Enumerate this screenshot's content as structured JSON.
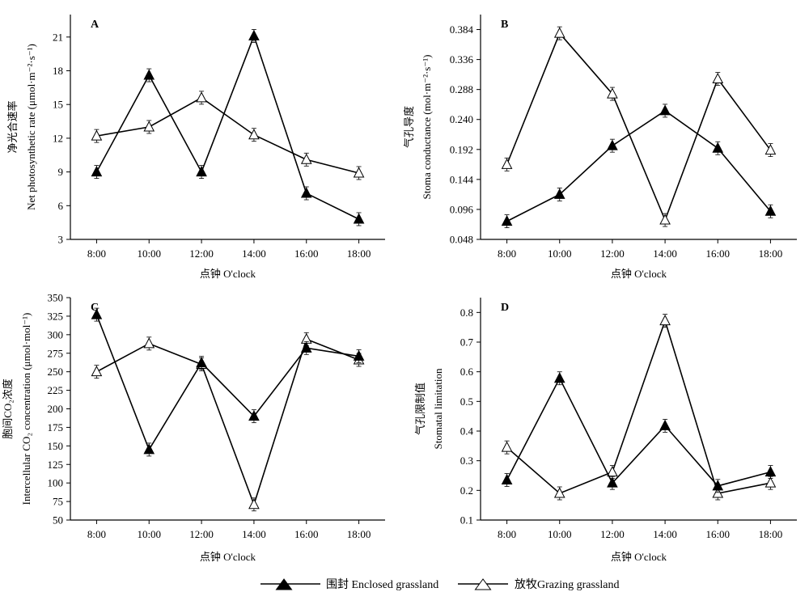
{
  "legend": {
    "enclosed_label": "围封 Enclosed grassland",
    "grazing_label": "放牧Grazing grassland"
  },
  "chart_data": [
    {
      "type": "line",
      "panel": "A",
      "categories": [
        "8:00",
        "10:00",
        "12:00",
        "14:00",
        "16:00",
        "18:00"
      ],
      "xlabel": "点钟 O'clock",
      "ylabel_cn": "净光合速率",
      "ylabel_en": "Net photosynthetic rate (μmol·m⁻²·s⁻¹)",
      "ylim": [
        3,
        23
      ],
      "yticks": [
        "3",
        "6",
        "9",
        "12",
        "15",
        "18",
        "21"
      ],
      "series": [
        {
          "name": "围封 Enclosed grassland",
          "marker": "filled-triangle",
          "values": [
            9.0,
            17.6,
            9.0,
            21.1,
            7.1,
            4.8
          ]
        },
        {
          "name": "放牧Grazing grassland",
          "marker": "open-triangle",
          "values": [
            12.2,
            13.0,
            15.6,
            12.3,
            10.1,
            8.9
          ]
        }
      ]
    },
    {
      "type": "line",
      "panel": "B",
      "categories": [
        "8:00",
        "10:00",
        "12:00",
        "14:00",
        "16:00",
        "18:00"
      ],
      "xlabel": "点钟 O'clock",
      "ylabel_cn": "气孔导度",
      "ylabel_en": "Stoma conductance (mol·m⁻²·s⁻¹)",
      "ylim": [
        0.048,
        0.408
      ],
      "yticks": [
        "0.048",
        "0.096",
        "0.144",
        "0.192",
        "0.240",
        "0.288",
        "0.336",
        "0.384"
      ],
      "series": [
        {
          "name": "围封 Enclosed grassland",
          "marker": "filled-triangle",
          "values": [
            0.077,
            0.12,
            0.198,
            0.254,
            0.194,
            0.093
          ]
        },
        {
          "name": "放牧Grazing grassland",
          "marker": "open-triangle",
          "values": [
            0.168,
            0.378,
            0.281,
            0.079,
            0.305,
            0.191
          ]
        }
      ]
    },
    {
      "type": "line",
      "panel": "C",
      "categories": [
        "8:00",
        "10:00",
        "12:00",
        "14:00",
        "16:00",
        "18:00"
      ],
      "xlabel": "点钟 O'clock",
      "ylabel_cn": "胞间CO₂浓度",
      "ylabel_en": "Intercellular CO₂ concentration (μmol·mol⁻¹)",
      "ylim": [
        50,
        350
      ],
      "yticks": [
        "50",
        "75",
        "100",
        "125",
        "150",
        "175",
        "200",
        "225",
        "250",
        "275",
        "300",
        "325",
        "350"
      ],
      "series": [
        {
          "name": "围封 Enclosed grassland",
          "marker": "filled-triangle",
          "values": [
            327,
            145,
            262,
            190,
            282,
            271
          ]
        },
        {
          "name": "放牧Grazing grassland",
          "marker": "open-triangle",
          "values": [
            250,
            288,
            260,
            71,
            294,
            266
          ]
        }
      ]
    },
    {
      "type": "line",
      "panel": "D",
      "categories": [
        "8:00",
        "10:00",
        "12:00",
        "14:00",
        "16:00",
        "18:00"
      ],
      "xlabel": "点钟 O'clock",
      "ylabel_cn": "气孔限制值",
      "ylabel_en": "Stomatal limitation",
      "ylim": [
        0.1,
        0.85
      ],
      "yticks": [
        "0.1",
        "0.2",
        "0.3",
        "0.4",
        "0.5",
        "0.6",
        "0.7",
        "0.8"
      ],
      "series": [
        {
          "name": "围封 Enclosed grassland",
          "marker": "filled-triangle",
          "values": [
            0.235,
            0.578,
            0.225,
            0.418,
            0.215,
            0.262
          ]
        },
        {
          "name": "放牧Grazing grassland",
          "marker": "open-triangle",
          "values": [
            0.345,
            0.19,
            0.262,
            0.772,
            0.19,
            0.225
          ]
        }
      ]
    }
  ]
}
